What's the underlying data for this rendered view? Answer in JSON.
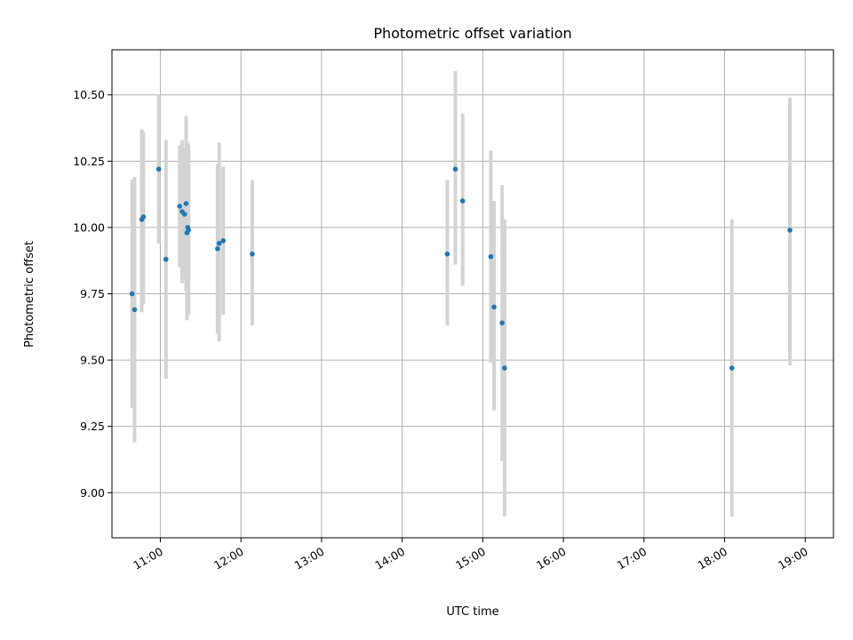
{
  "chart_data": {
    "type": "scatter",
    "title": "Photometric offset variation",
    "xlabel": "UTC time",
    "ylabel": "Photometric offset",
    "x_unit": "hours UTC",
    "xlim": [
      10.4,
      19.35
    ],
    "ylim": [
      8.83,
      10.67
    ],
    "grid": true,
    "x_ticks": [
      {
        "value": 11,
        "label": "11:00"
      },
      {
        "value": 12,
        "label": "12:00"
      },
      {
        "value": 13,
        "label": "13:00"
      },
      {
        "value": 14,
        "label": "14:00"
      },
      {
        "value": 15,
        "label": "15:00"
      },
      {
        "value": 16,
        "label": "16:00"
      },
      {
        "value": 17,
        "label": "17:00"
      },
      {
        "value": 18,
        "label": "18:00"
      },
      {
        "value": 19,
        "label": "19:00"
      }
    ],
    "y_ticks": [
      {
        "value": 9.0,
        "label": "9.00"
      },
      {
        "value": 9.25,
        "label": "9.25"
      },
      {
        "value": 9.5,
        "label": "9.50"
      },
      {
        "value": 9.75,
        "label": "9.75"
      },
      {
        "value": 10.0,
        "label": "10.00"
      },
      {
        "value": 10.25,
        "label": "10.25"
      },
      {
        "value": 10.5,
        "label": "10.50"
      }
    ],
    "colors": {
      "point": "#1f77b4",
      "errorbar": "#d3d3d3",
      "grid": "#b0b0b0"
    },
    "points": [
      {
        "x": 10.65,
        "y": 9.75,
        "lo": 9.32,
        "hi": 10.18
      },
      {
        "x": 10.68,
        "y": 9.69,
        "lo": 9.19,
        "hi": 10.19
      },
      {
        "x": 10.77,
        "y": 10.03,
        "lo": 9.68,
        "hi": 10.37
      },
      {
        "x": 10.79,
        "y": 10.04,
        "lo": 9.71,
        "hi": 10.36
      },
      {
        "x": 10.98,
        "y": 10.22,
        "lo": 9.94,
        "hi": 10.5
      },
      {
        "x": 11.07,
        "y": 9.88,
        "lo": 9.43,
        "hi": 10.33
      },
      {
        "x": 11.24,
        "y": 10.08,
        "lo": 9.85,
        "hi": 10.31
      },
      {
        "x": 11.27,
        "y": 10.06,
        "lo": 9.79,
        "hi": 10.33
      },
      {
        "x": 11.3,
        "y": 10.05,
        "lo": 9.8,
        "hi": 10.3
      },
      {
        "x": 11.32,
        "y": 10.09,
        "lo": 9.76,
        "hi": 10.42
      },
      {
        "x": 11.33,
        "y": 9.98,
        "lo": 9.65,
        "hi": 10.31
      },
      {
        "x": 11.34,
        "y": 10.0,
        "lo": 9.68,
        "hi": 10.32
      },
      {
        "x": 11.35,
        "y": 9.99,
        "lo": 9.67,
        "hi": 10.31
      },
      {
        "x": 11.71,
        "y": 9.92,
        "lo": 9.6,
        "hi": 10.24
      },
      {
        "x": 11.73,
        "y": 9.94,
        "lo": 9.57,
        "hi": 10.32
      },
      {
        "x": 11.78,
        "y": 9.95,
        "lo": 9.67,
        "hi": 10.23
      },
      {
        "x": 12.14,
        "y": 9.9,
        "lo": 9.63,
        "hi": 10.18
      },
      {
        "x": 14.56,
        "y": 9.9,
        "lo": 9.63,
        "hi": 10.18
      },
      {
        "x": 14.66,
        "y": 10.22,
        "lo": 9.86,
        "hi": 10.59
      },
      {
        "x": 14.75,
        "y": 10.1,
        "lo": 9.78,
        "hi": 10.43
      },
      {
        "x": 15.1,
        "y": 9.89,
        "lo": 9.49,
        "hi": 10.29
      },
      {
        "x": 15.14,
        "y": 9.7,
        "lo": 9.31,
        "hi": 10.1
      },
      {
        "x": 15.24,
        "y": 9.64,
        "lo": 9.12,
        "hi": 10.16
      },
      {
        "x": 15.27,
        "y": 9.47,
        "lo": 8.91,
        "hi": 10.03
      },
      {
        "x": 18.09,
        "y": 9.47,
        "lo": 8.91,
        "hi": 10.03
      },
      {
        "x": 18.81,
        "y": 9.99,
        "lo": 9.48,
        "hi": 10.49
      }
    ]
  }
}
